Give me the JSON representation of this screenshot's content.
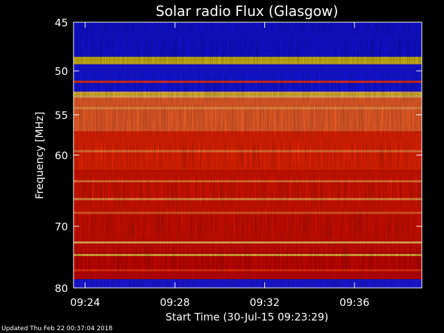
{
  "chart_data": {
    "type": "heatmap",
    "title": "Solar radio Flux (Glasgow)",
    "xlabel": "Start Time (30-Jul-15 09:23:29)",
    "ylabel": "Frequency [MHz]",
    "x_ticks": [
      "09:24",
      "09:28",
      "09:32",
      "09:36"
    ],
    "y_ticks": [
      "45",
      "50",
      "55",
      "60",
      "70",
      "80"
    ],
    "y_tick_values": [
      45,
      50,
      55,
      60,
      70,
      80
    ],
    "ylim": [
      45,
      80
    ],
    "y_scale": "log",
    "x_start": "09:23:29",
    "x_end": "09:39:00",
    "colormap": [
      "#0000a0",
      "#1a1aff",
      "#7a0000",
      "#cc0000",
      "#ff2a00",
      "#ff6a30",
      "#ffc060",
      "#d4c000"
    ],
    "bands": [
      {
        "from": 45.0,
        "to": 48.5,
        "level": 0.1
      },
      {
        "from": 48.5,
        "to": 49.3,
        "level": 0.95
      },
      {
        "from": 49.3,
        "to": 52.3,
        "level": 0.12
      },
      {
        "from": 52.3,
        "to": 53.0,
        "level": 0.85
      },
      {
        "from": 53.0,
        "to": 57.0,
        "level": 0.7
      },
      {
        "from": 57.0,
        "to": 62.0,
        "level": 0.55
      },
      {
        "from": 62.0,
        "to": 68.0,
        "level": 0.5
      },
      {
        "from": 68.0,
        "to": 74.0,
        "level": 0.48
      },
      {
        "from": 74.0,
        "to": 78.5,
        "level": 0.45
      },
      {
        "from": 78.5,
        "to": 80.0,
        "level": 0.15
      }
    ],
    "lines": [
      {
        "freq": 48.8,
        "level": 1.0
      },
      {
        "freq": 51.2,
        "level": 0.6
      },
      {
        "freq": 52.6,
        "level": 0.95
      },
      {
        "freq": 54.2,
        "level": 0.8
      },
      {
        "freq": 59.5,
        "level": 0.75
      },
      {
        "freq": 63.5,
        "level": 0.75
      },
      {
        "freq": 66.0,
        "level": 0.8
      },
      {
        "freq": 68.0,
        "level": 0.7
      },
      {
        "freq": 72.5,
        "level": 0.85
      },
      {
        "freq": 74.5,
        "level": 0.9
      },
      {
        "freq": 77.0,
        "level": 0.6
      }
    ]
  },
  "footer": {
    "updated": "Updated Thu Feb 22 00:37:04 2018"
  }
}
